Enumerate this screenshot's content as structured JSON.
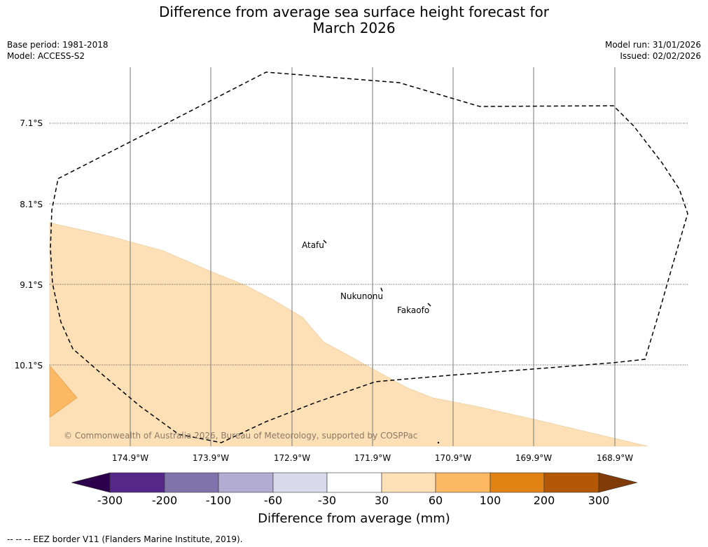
{
  "title": {
    "line1": "Difference from average sea surface height forecast for",
    "line2": "March 2026"
  },
  "meta_left": {
    "base_period": "Base period: 1981-2018",
    "model": "Model: ACCESS-S2"
  },
  "meta_right": {
    "model_run": "Model run: 31/01/2026",
    "issued": "Issued: 02/02/2026"
  },
  "map": {
    "lat_labels": [
      "7.1°S",
      "8.1°S",
      "9.1°S",
      "10.1°S"
    ],
    "lon_labels": [
      "174.9°W",
      "173.9°W",
      "172.9°W",
      "171.9°W",
      "170.9°W",
      "169.9°W",
      "168.9°W"
    ],
    "islands": [
      "Atafu",
      "Nukunonu",
      "Fakaofo"
    ],
    "copyright": "© Commonwealth of Australia 2026, Bureau of Meteorology, supported by COSPPac"
  },
  "colorbar": {
    "tick_labels": [
      "-300",
      "-200",
      "-100",
      "-60",
      "-30",
      "30",
      "60",
      "100",
      "200",
      "300"
    ],
    "colors": [
      "#2d004b",
      "#542788",
      "#8073ac",
      "#b2abd2",
      "#d8daeb",
      "#ffffff",
      "#fee0b6",
      "#fdb863",
      "#e08214",
      "#b35806",
      "#7f3b08"
    ],
    "title": "Difference from average (mm)"
  },
  "footnote": "--  --  -- EEZ border V11 (Flanders Marine Institute, 2019)."
}
